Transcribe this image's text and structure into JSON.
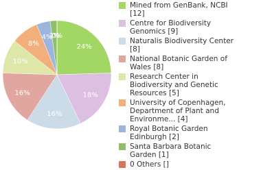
{
  "chart_data": {
    "type": "pie",
    "categories": [
      "Mined from GenBank, NCBI [12]",
      "Centre for Biodiversity Genomics [9]",
      "Naturalis Biodiversity Center [8]",
      "National Botanic Garden of Wales [8]",
      "Research Center in Biodiversity and Genetic Resources [5]",
      "University of Copenhagen, Department of Plant and Environme... [4]",
      "Royal Botanic Garden Edinburgh [2]",
      "Santa Barbara Botanic Garden [1]",
      "0 Others []"
    ],
    "values": [
      24.49,
      18.37,
      16.33,
      16.33,
      10.2,
      8.16,
      4.08,
      2.04,
      0
    ],
    "value_labels": [
      "24%",
      "18%",
      "16%",
      "16%",
      "10%",
      "8%",
      "4%",
      "2%",
      "0%"
    ],
    "colors": [
      "#a2d765",
      "#ddbfe1",
      "#cbdbe7",
      "#e0a69f",
      "#dee7a8",
      "#f1b07b",
      "#9bb5de",
      "#8fbf68",
      "#d7735f"
    ]
  }
}
